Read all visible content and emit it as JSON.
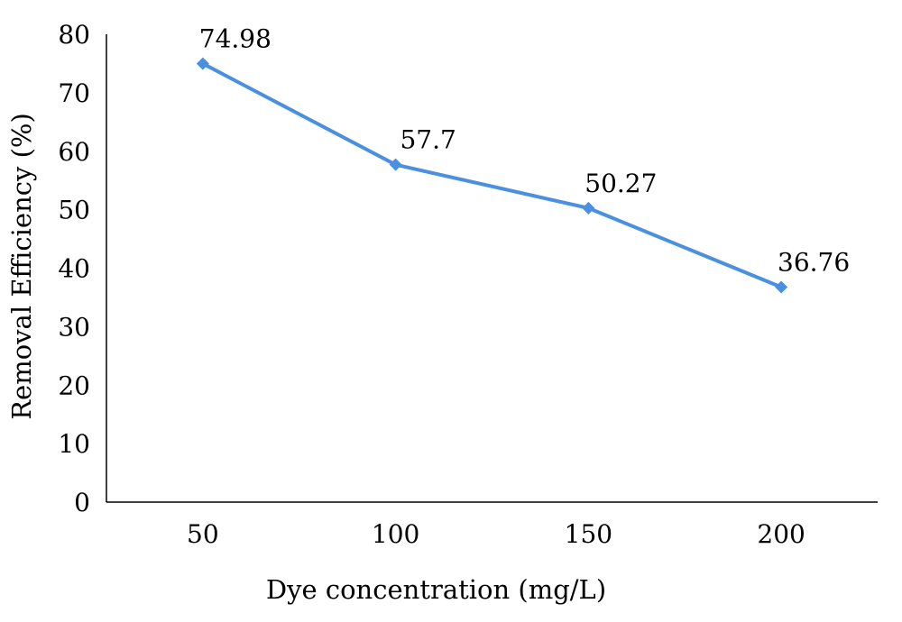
{
  "chart_data": {
    "type": "line",
    "title": "",
    "xlabel": "Dye concentration (mg/L)",
    "ylabel": "Removal Efficiency (%)",
    "categories": [
      "50",
      "100",
      "150",
      "200"
    ],
    "series": [
      {
        "values": [
          74.98,
          57.7,
          50.27,
          36.76
        ],
        "labels": [
          "74.98",
          "57.7",
          "50.27",
          "36.76"
        ],
        "color": "#4a8fe0"
      }
    ],
    "ylim": [
      0,
      80
    ],
    "yticks": [
      "0",
      "10",
      "20",
      "30",
      "40",
      "50",
      "60",
      "70",
      "80"
    ],
    "grid": false,
    "legend": "none",
    "marker": "diamond"
  }
}
